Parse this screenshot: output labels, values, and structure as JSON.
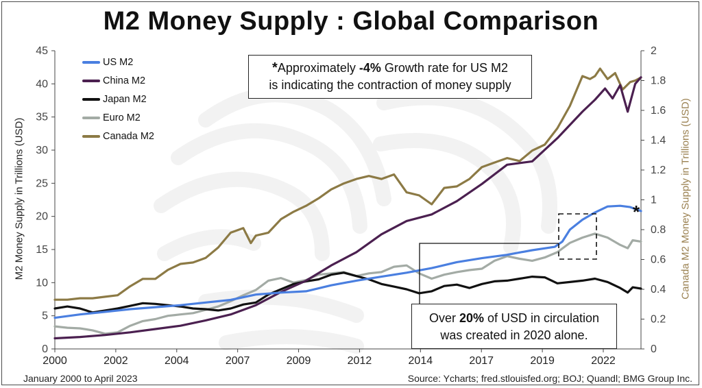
{
  "title": "M2 Money Supply : Global Comparison",
  "footer_left": "January 2000 to April 2023",
  "footer_right": "Source: Ycharts; fred.stlouisfed.org; BOJ; Quandl; BMG Group Inc.",
  "annotations": {
    "top_box": {
      "star": "*",
      "line1_pre": "Approximately ",
      "line1_bold": "-4%",
      "line1_post": " Growth rate for US M2",
      "line2": "is indicating the contraction of money supply"
    },
    "bottom_box": {
      "line1_pre": "Over ",
      "line1_bold": "20%",
      "line1_post": " of USD in circulation",
      "line2": "was created in 2020 alone."
    },
    "us_star": "*"
  },
  "chart_data": {
    "type": "line",
    "ylabel": "M2 Money Supply in Trillions (USD)",
    "ylabel_right": "Canada M2 Money Supply in Trillions (USD)",
    "xlim": [
      2000,
      2023.33
    ],
    "ylim": [
      0,
      45
    ],
    "ylim_right": [
      0,
      2
    ],
    "x_ticks": [
      "2000",
      "2002",
      "2004",
      "2007",
      "2009",
      "2012",
      "2014",
      "2017",
      "2019",
      "2022"
    ],
    "y_ticks": [
      "0",
      "5",
      "10",
      "15",
      "20",
      "25",
      "30",
      "35",
      "40",
      "45"
    ],
    "y_ticks_right": [
      "0",
      "0.2",
      "0.4",
      "0.6",
      "0.8",
      "1",
      "1.2",
      "1.4",
      "1.6",
      "1.8",
      "2"
    ],
    "grid": false,
    "legend_position": "top-left",
    "series": [
      {
        "name": "US M2",
        "color": "#4a7fe0",
        "axis": "left",
        "points": [
          [
            2000,
            4.7
          ],
          [
            2001,
            5.2
          ],
          [
            2002,
            5.6
          ],
          [
            2003,
            6.0
          ],
          [
            2004,
            6.3
          ],
          [
            2005,
            6.6
          ],
          [
            2006,
            7.0
          ],
          [
            2007,
            7.4
          ],
          [
            2008,
            8.2
          ],
          [
            2009,
            8.5
          ],
          [
            2010,
            8.7
          ],
          [
            2011,
            9.6
          ],
          [
            2012,
            10.3
          ],
          [
            2013,
            10.9
          ],
          [
            2014,
            11.5
          ],
          [
            2015,
            12.2
          ],
          [
            2016,
            13.1
          ],
          [
            2017,
            13.7
          ],
          [
            2018,
            14.2
          ],
          [
            2019,
            14.9
          ],
          [
            2019.9,
            15.4
          ],
          [
            2020.2,
            16.2
          ],
          [
            2020.5,
            18.0
          ],
          [
            2021,
            19.5
          ],
          [
            2021.5,
            20.6
          ],
          [
            2022,
            21.5
          ],
          [
            2022.5,
            21.6
          ],
          [
            2022.9,
            21.4
          ],
          [
            2023.33,
            20.8
          ]
        ]
      },
      {
        "name": "China M2",
        "color": "#4b2050",
        "axis": "left",
        "points": [
          [
            2000,
            1.6
          ],
          [
            2001,
            1.8
          ],
          [
            2002,
            2.1
          ],
          [
            2003,
            2.5
          ],
          [
            2004,
            3.0
          ],
          [
            2005,
            3.5
          ],
          [
            2006,
            4.3
          ],
          [
            2007,
            5.2
          ],
          [
            2008,
            6.6
          ],
          [
            2009,
            8.6
          ],
          [
            2010,
            10.3
          ],
          [
            2011,
            12.6
          ],
          [
            2012,
            14.6
          ],
          [
            2013,
            17.3
          ],
          [
            2014,
            19.3
          ],
          [
            2015,
            20.3
          ],
          [
            2016,
            22.3
          ],
          [
            2017,
            24.9
          ],
          [
            2018,
            27.8
          ],
          [
            2019,
            28.3
          ],
          [
            2020,
            31.8
          ],
          [
            2021,
            35.8
          ],
          [
            2021.5,
            37.6
          ],
          [
            2021.9,
            39.3
          ],
          [
            2022.2,
            37.8
          ],
          [
            2022.5,
            39.8
          ],
          [
            2022.8,
            35.8
          ],
          [
            2023.1,
            40.0
          ],
          [
            2023.33,
            41.0
          ]
        ]
      },
      {
        "name": "Japan M2",
        "color": "#111111",
        "axis": "left",
        "points": [
          [
            2000,
            6.1
          ],
          [
            2000.5,
            6.4
          ],
          [
            2001,
            6.1
          ],
          [
            2001.5,
            5.5
          ],
          [
            2002,
            5.8
          ],
          [
            2002.5,
            6.1
          ],
          [
            2003,
            6.5
          ],
          [
            2003.5,
            6.9
          ],
          [
            2004,
            6.8
          ],
          [
            2004.5,
            6.6
          ],
          [
            2005,
            6.4
          ],
          [
            2005.5,
            6.1
          ],
          [
            2006,
            6.0
          ],
          [
            2006.5,
            5.8
          ],
          [
            2007,
            6.1
          ],
          [
            2007.5,
            6.7
          ],
          [
            2008,
            7.0
          ],
          [
            2008.5,
            8.2
          ],
          [
            2009,
            9.0
          ],
          [
            2009.5,
            9.8
          ],
          [
            2010,
            10.2
          ],
          [
            2010.5,
            10.5
          ],
          [
            2011,
            11.2
          ],
          [
            2011.5,
            11.5
          ],
          [
            2012,
            11.0
          ],
          [
            2012.5,
            10.5
          ],
          [
            2013,
            9.8
          ],
          [
            2013.5,
            9.4
          ],
          [
            2014,
            9.0
          ],
          [
            2014.5,
            8.4
          ],
          [
            2015,
            8.7
          ],
          [
            2015.5,
            9.5
          ],
          [
            2016,
            9.7
          ],
          [
            2016.5,
            9.2
          ],
          [
            2017,
            9.8
          ],
          [
            2017.5,
            10.2
          ],
          [
            2018,
            10.3
          ],
          [
            2018.5,
            10.6
          ],
          [
            2019,
            10.9
          ],
          [
            2019.5,
            10.8
          ],
          [
            2020,
            9.9
          ],
          [
            2020.5,
            10.1
          ],
          [
            2021,
            10.3
          ],
          [
            2021.5,
            10.6
          ],
          [
            2022,
            10.1
          ],
          [
            2022.5,
            9.2
          ],
          [
            2022.8,
            8.5
          ],
          [
            2023,
            9.3
          ],
          [
            2023.33,
            9.1
          ]
        ]
      },
      {
        "name": "Euro M2",
        "color": "#a3aba5",
        "axis": "left",
        "points": [
          [
            2000,
            3.4
          ],
          [
            2000.5,
            3.2
          ],
          [
            2001,
            3.1
          ],
          [
            2001.5,
            2.8
          ],
          [
            2002,
            2.3
          ],
          [
            2002.5,
            2.5
          ],
          [
            2003,
            3.5
          ],
          [
            2003.5,
            4.2
          ],
          [
            2004,
            4.5
          ],
          [
            2004.5,
            5.0
          ],
          [
            2005,
            5.2
          ],
          [
            2005.5,
            5.4
          ],
          [
            2006,
            5.9
          ],
          [
            2006.5,
            6.4
          ],
          [
            2007,
            7.2
          ],
          [
            2007.5,
            8.1
          ],
          [
            2008,
            8.9
          ],
          [
            2008.5,
            10.3
          ],
          [
            2009,
            10.7
          ],
          [
            2009.5,
            10.0
          ],
          [
            2010,
            10.4
          ],
          [
            2010.5,
            11.2
          ],
          [
            2011,
            11.4
          ],
          [
            2011.5,
            11.6
          ],
          [
            2012,
            11.0
          ],
          [
            2012.5,
            11.4
          ],
          [
            2013,
            11.6
          ],
          [
            2013.5,
            12.4
          ],
          [
            2014,
            12.6
          ],
          [
            2014.5,
            11.4
          ],
          [
            2015,
            10.6
          ],
          [
            2015.5,
            11.2
          ],
          [
            2016,
            11.6
          ],
          [
            2016.5,
            11.9
          ],
          [
            2017,
            12.1
          ],
          [
            2017.5,
            13.3
          ],
          [
            2018,
            14.0
          ],
          [
            2018.5,
            13.6
          ],
          [
            2019,
            13.3
          ],
          [
            2019.5,
            13.8
          ],
          [
            2020,
            14.6
          ],
          [
            2020.5,
            16.0
          ],
          [
            2021,
            16.8
          ],
          [
            2021.5,
            17.4
          ],
          [
            2022,
            16.8
          ],
          [
            2022.5,
            15.7
          ],
          [
            2022.8,
            15.2
          ],
          [
            2023,
            16.4
          ],
          [
            2023.33,
            16.2
          ]
        ]
      },
      {
        "name": "Canada M2",
        "color": "#8c7a45",
        "axis": "right",
        "points": [
          [
            2000,
            0.33
          ],
          [
            2000.5,
            0.33
          ],
          [
            2001,
            0.34
          ],
          [
            2001.5,
            0.34
          ],
          [
            2002,
            0.35
          ],
          [
            2002.5,
            0.36
          ],
          [
            2003,
            0.42
          ],
          [
            2003.5,
            0.47
          ],
          [
            2004,
            0.47
          ],
          [
            2004.5,
            0.53
          ],
          [
            2005,
            0.57
          ],
          [
            2005.5,
            0.58
          ],
          [
            2006,
            0.61
          ],
          [
            2006.5,
            0.68
          ],
          [
            2007,
            0.78
          ],
          [
            2007.5,
            0.81
          ],
          [
            2007.8,
            0.71
          ],
          [
            2008,
            0.76
          ],
          [
            2008.5,
            0.78
          ],
          [
            2009,
            0.87
          ],
          [
            2009.5,
            0.92
          ],
          [
            2010,
            0.96
          ],
          [
            2010.5,
            1.01
          ],
          [
            2011,
            1.07
          ],
          [
            2011.5,
            1.11
          ],
          [
            2012,
            1.14
          ],
          [
            2012.5,
            1.16
          ],
          [
            2013,
            1.14
          ],
          [
            2013.5,
            1.17
          ],
          [
            2014,
            1.05
          ],
          [
            2014.5,
            1.03
          ],
          [
            2015,
            0.97
          ],
          [
            2015.5,
            1.08
          ],
          [
            2016,
            1.09
          ],
          [
            2016.5,
            1.14
          ],
          [
            2017,
            1.22
          ],
          [
            2017.5,
            1.25
          ],
          [
            2018,
            1.28
          ],
          [
            2018.5,
            1.26
          ],
          [
            2019,
            1.33
          ],
          [
            2019.5,
            1.37
          ],
          [
            2020,
            1.48
          ],
          [
            2020.5,
            1.63
          ],
          [
            2021,
            1.83
          ],
          [
            2021.3,
            1.81
          ],
          [
            2021.5,
            1.83
          ],
          [
            2021.7,
            1.88
          ],
          [
            2022,
            1.81
          ],
          [
            2022.3,
            1.85
          ],
          [
            2022.6,
            1.74
          ],
          [
            2022.9,
            1.79
          ],
          [
            2023.1,
            1.8
          ],
          [
            2023.33,
            1.82
          ]
        ]
      }
    ]
  }
}
